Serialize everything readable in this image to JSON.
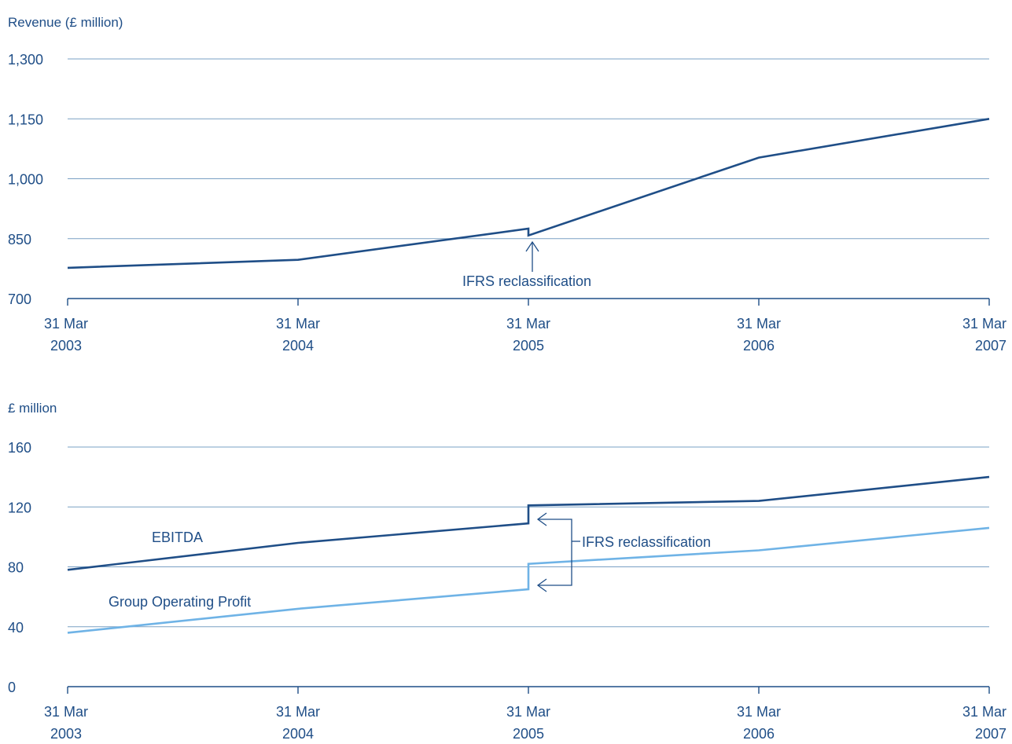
{
  "colors": {
    "dark_series": "#1f4e87",
    "light_series": "#6fb3e6",
    "text": "#1f4e87",
    "grid": "#7aa0c4"
  },
  "chart_data": [
    {
      "type": "line",
      "title": "Revenue (£ million)",
      "ylabel": "Revenue (£ million)",
      "ylim": [
        700,
        1300
      ],
      "yticks": [
        "1,300",
        "1,150",
        "1,000",
        "850",
        "700"
      ],
      "ytick_values": [
        1300,
        1150,
        1000,
        850,
        700
      ],
      "xtick_labels": [
        {
          "line1": "31 Mar",
          "line2": "2003"
        },
        {
          "line1": "31 Mar",
          "line2": "2004"
        },
        {
          "line1": "31 Mar",
          "line2": "2005"
        },
        {
          "line1": "31 Mar",
          "line2": "2006"
        },
        {
          "line1": "31 Mar",
          "line2": "2007"
        }
      ],
      "grid": true,
      "series": [
        {
          "color": "#1f4e87",
          "points": [
            {
              "x": 2003,
              "y": 777
            },
            {
              "x": 2004,
              "y": 797
            },
            {
              "x": 2005,
              "y": 875
            },
            {
              "x": 2005,
              "y": 858
            },
            {
              "x": 2006,
              "y": 1053
            },
            {
              "x": 2007,
              "y": 1150
            }
          ]
        }
      ],
      "annotations": [
        {
          "text": "IFRS reclassification",
          "x": 2005
        }
      ]
    },
    {
      "type": "line",
      "title": "£ million",
      "ylabel": "£ million",
      "ylim": [
        0,
        160
      ],
      "yticks": [
        "160",
        "120",
        "80",
        "40",
        "0"
      ],
      "ytick_values": [
        160,
        120,
        80,
        40,
        0
      ],
      "xtick_labels": [
        {
          "line1": "31 Mar",
          "line2": "2003"
        },
        {
          "line1": "31 Mar",
          "line2": "2004"
        },
        {
          "line1": "31 Mar",
          "line2": "2005"
        },
        {
          "line1": "31 Mar",
          "line2": "2006"
        },
        {
          "line1": "31 Mar",
          "line2": "2007"
        }
      ],
      "grid": true,
      "series": [
        {
          "name": "EBITDA",
          "color": "#1f4e87",
          "points": [
            {
              "x": 2003,
              "y": 78
            },
            {
              "x": 2004,
              "y": 96
            },
            {
              "x": 2005,
              "y": 109
            },
            {
              "x": 2005,
              "y": 121
            },
            {
              "x": 2006,
              "y": 124
            },
            {
              "x": 2007,
              "y": 140
            }
          ]
        },
        {
          "name": "Group Operating Profit",
          "color": "#6fb3e6",
          "points": [
            {
              "x": 2003,
              "y": 36
            },
            {
              "x": 2004,
              "y": 52
            },
            {
              "x": 2005,
              "y": 65
            },
            {
              "x": 2005,
              "y": 82
            },
            {
              "x": 2006,
              "y": 91
            },
            {
              "x": 2007,
              "y": 106
            }
          ]
        }
      ],
      "annotations": [
        {
          "text": "IFRS reclassification",
          "x": 2005
        }
      ]
    }
  ]
}
